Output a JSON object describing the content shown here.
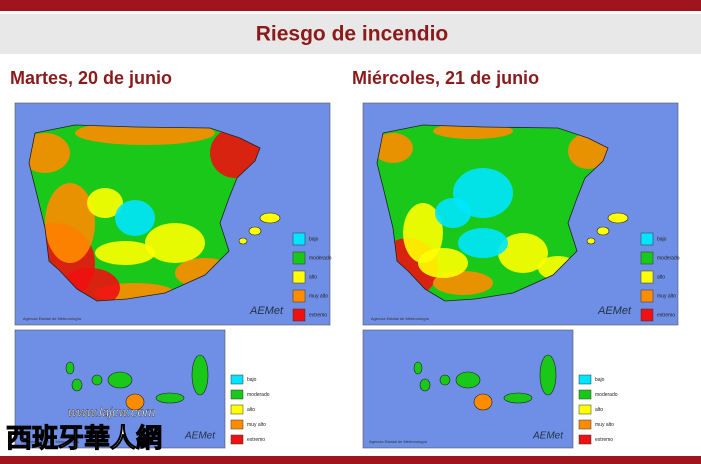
{
  "header": {
    "title": "Riesgo de incendio"
  },
  "days": [
    {
      "label": "Martes, 20 de junio"
    },
    {
      "label": "Miércoles, 21 de junio"
    }
  ],
  "legend": [
    {
      "label": "bajo",
      "color": "#00e5ff"
    },
    {
      "label": "moderado",
      "color": "#19c819"
    },
    {
      "label": "alto",
      "color": "#ffff00"
    },
    {
      "label": "muy alto",
      "color": "#ff8c00"
    },
    {
      "label": "extremo",
      "color": "#ee1111"
    }
  ],
  "agency": "Agencia Estatal de Meteorología",
  "logo": "AEMet",
  "watermark": {
    "url": "www.lajcw.com",
    "name": "西班牙華人網"
  }
}
